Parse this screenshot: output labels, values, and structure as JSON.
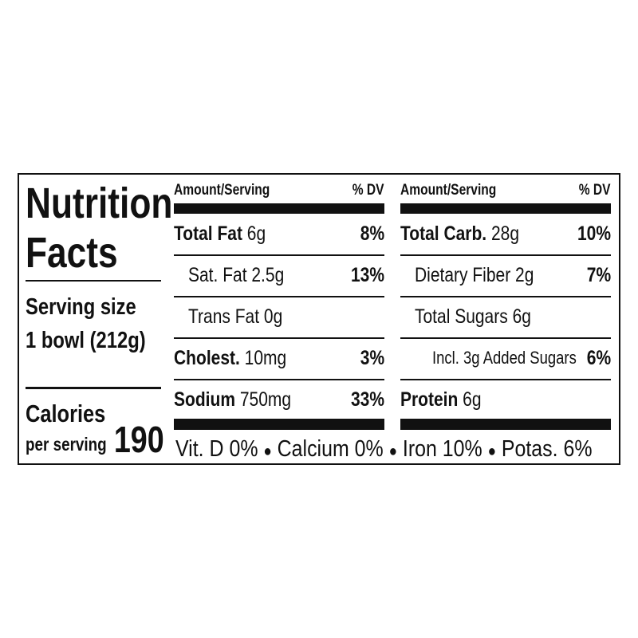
{
  "title": {
    "line1": "Nutrition",
    "line2": "Facts"
  },
  "serving": {
    "label": "Serving size",
    "amount": "1 bowl (212g)"
  },
  "calories": {
    "label": "Calories",
    "sublabel": "per serving",
    "value": 190
  },
  "columns": [
    {
      "header": {
        "amount": "Amount/Serving",
        "dv": "% DV"
      },
      "rows": [
        {
          "name": "Total Fat",
          "amount": "6g",
          "dv": "8%"
        },
        {
          "name": "Sat. Fat",
          "amount": "2.5g",
          "dv": "13%"
        },
        {
          "name": "Trans Fat",
          "amount": "0g"
        },
        {
          "name": "Cholest.",
          "amount": "10mg",
          "dv": "3%"
        },
        {
          "name": "Sodium",
          "amount": "750mg",
          "dv": "33%"
        }
      ]
    },
    {
      "header": {
        "amount": "Amount/Serving",
        "dv": "% DV"
      },
      "rows": [
        {
          "name": "Total Carb.",
          "amount": "28g",
          "dv": "10%"
        },
        {
          "name": "Dietary Fiber",
          "amount": "2g",
          "dv": "7%"
        },
        {
          "name": "Total Sugars",
          "amount": "6g"
        },
        {
          "name": "Incl. 3g Added Sugars",
          "dv": "6%"
        },
        {
          "name": "Protein",
          "amount": "6g"
        }
      ]
    }
  ],
  "vitamins": [
    "Vit. D 0%",
    "Calcium 0%",
    "Iron 10%",
    "Potas. 6%"
  ]
}
